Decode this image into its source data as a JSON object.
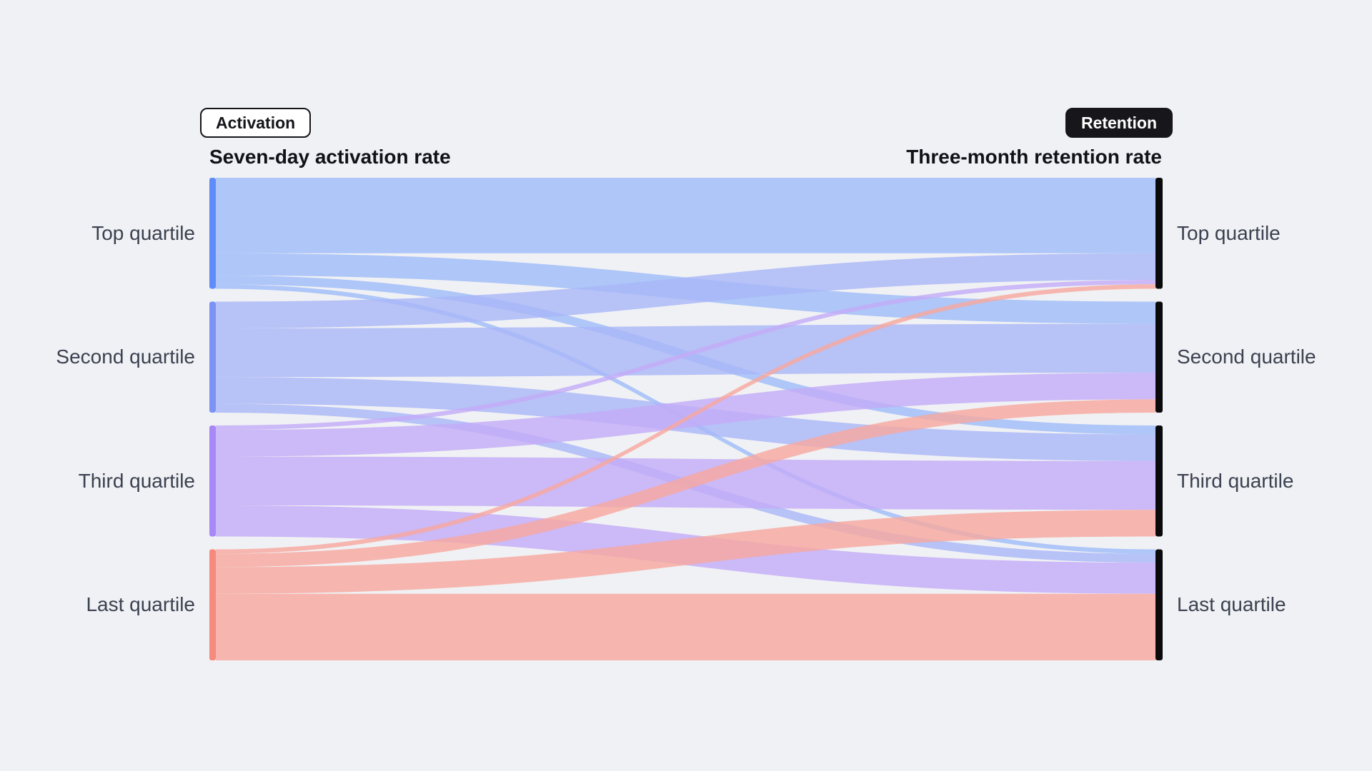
{
  "page": {
    "background": "#F0F1F4"
  },
  "toggle": {
    "activation_label": "Activation",
    "retention_label": "Retention",
    "active": "Retention"
  },
  "chart_data": {
    "type": "sankey",
    "left_title": "Seven-day activation rate",
    "right_title": "Three-month retention rate",
    "nodes": [
      "Top quartile",
      "Second quartile",
      "Third quartile",
      "Last quartile"
    ],
    "node_colors": [
      "#5F8CF8",
      "#7D92F5",
      "#A788F6",
      "#F68A7D"
    ],
    "flow_colors": [
      "#9DBCF9",
      "#A9B6F8",
      "#C3ABF8",
      "#F8A79D"
    ],
    "right_node_color": "#0A0A0D",
    "links": [
      {
        "source": 0,
        "target": 0,
        "value": 17
      },
      {
        "source": 0,
        "target": 1,
        "value": 5
      },
      {
        "source": 0,
        "target": 2,
        "value": 2
      },
      {
        "source": 0,
        "target": 3,
        "value": 1
      },
      {
        "source": 1,
        "target": 0,
        "value": 6
      },
      {
        "source": 1,
        "target": 1,
        "value": 11
      },
      {
        "source": 1,
        "target": 2,
        "value": 6
      },
      {
        "source": 1,
        "target": 3,
        "value": 2
      },
      {
        "source": 2,
        "target": 0,
        "value": 1
      },
      {
        "source": 2,
        "target": 1,
        "value": 6
      },
      {
        "source": 2,
        "target": 2,
        "value": 11
      },
      {
        "source": 2,
        "target": 3,
        "value": 7
      },
      {
        "source": 3,
        "target": 0,
        "value": 1
      },
      {
        "source": 3,
        "target": 1,
        "value": 3
      },
      {
        "source": 3,
        "target": 2,
        "value": 6
      },
      {
        "source": 3,
        "target": 3,
        "value": 15
      }
    ],
    "layout": {
      "legend": "none",
      "grid": false,
      "node_count_each_side": 4
    }
  }
}
